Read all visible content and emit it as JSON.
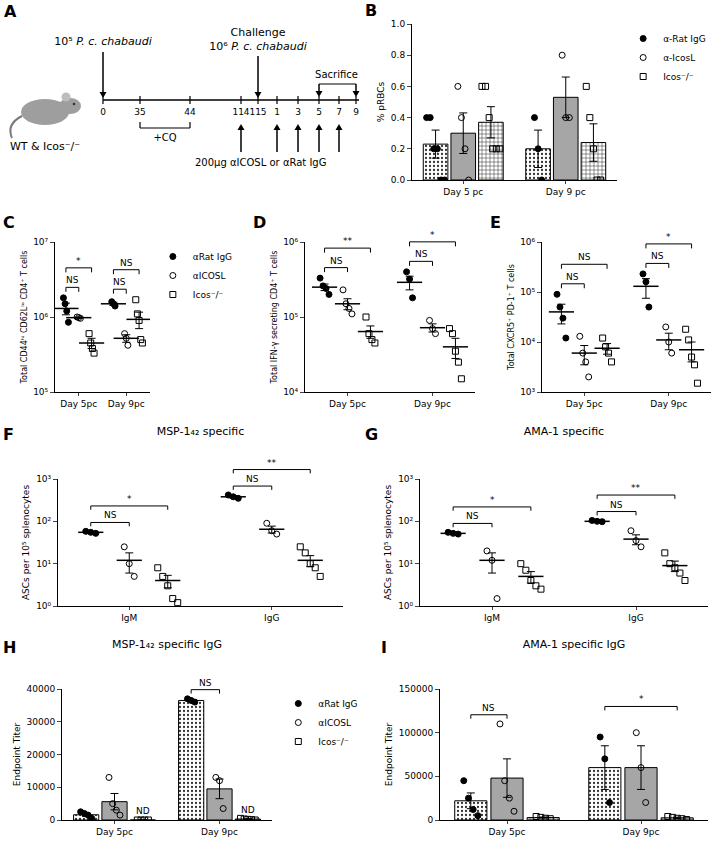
{
  "diagram": {
    "panel": "A",
    "subject": "WT & Icos⁻/⁻",
    "timeline": [
      "0",
      "35",
      "44",
      "114",
      "115",
      "1",
      "3",
      "5",
      "7",
      "9"
    ],
    "infection": {
      "dose": "10⁵",
      "organism": "P. c. chabaudi",
      "at": "0"
    },
    "challenge": {
      "label": "Challenge",
      "dose": "10⁶",
      "organism": "P. c. chabaudi",
      "at": "115"
    },
    "treatment_period": {
      "label": "+CQ",
      "from": "35",
      "to": "44"
    },
    "sacrifice": {
      "label": "Sacrifice",
      "from": "5",
      "to": "9"
    },
    "injections": {
      "label": "200µg αICOSL or αRat IgG",
      "at": [
        "114",
        "1",
        "3",
        "5",
        "7"
      ]
    }
  },
  "chart_data": [
    {
      "panel": "B",
      "type": "bar",
      "categories": [
        "Day 5 pc",
        "Day 9 pc"
      ],
      "y_label": "% pRBCs",
      "ylim": [
        0,
        1
      ],
      "yticks": [
        {
          "value": 0,
          "label": "0.0"
        },
        0.2,
        0.4,
        0.6,
        0.8,
        {
          "value": 1,
          "label": "1.0"
        }
      ],
      "grid": false,
      "legend": "right",
      "series": [
        {
          "name": "α-Rat IgG",
          "color": "#808080",
          "marker": "circle",
          "values": [
            0.23,
            0.2
          ],
          "errors": [
            0.09,
            0.12
          ],
          "points": [
            [
              0.4,
              0.4,
              0.2,
              0.2,
              0,
              0
            ],
            [
              0.4,
              0.2,
              0
            ]
          ]
        },
        {
          "name": "α-IcosL",
          "color": "#a6a6a6",
          "marker": "circle-open",
          "values": [
            0.3,
            0.53
          ],
          "errors": [
            0.13,
            0.13
          ],
          "points": [
            [
              0.6,
              0.4,
              0.2,
              0
            ],
            [
              0.8,
              0.4,
              0.4
            ]
          ]
        },
        {
          "name": "Icos⁻/⁻",
          "color": "#a6a6a6",
          "marker": "square-open",
          "values": [
            0.37,
            0.24
          ],
          "errors": [
            0.1,
            0.12
          ],
          "points": [
            [
              0.6,
              0.6,
              0.4,
              0.2,
              0.2,
              0.2
            ],
            [
              0.6,
              0.4,
              0.2,
              0,
              0
            ]
          ]
        }
      ]
    },
    {
      "panel": "C",
      "type": "scatter",
      "categories": [
        "Day 5pc",
        "Day 9pc"
      ],
      "y_label": "Total CD44ʰⁱ CD62Lˡᵒ CD4⁺ T cells",
      "log": "y",
      "ylim": [
        100000,
        10000000
      ],
      "yticks": [
        {
          "value": 100000,
          "label": "10⁵"
        },
        {
          "value": 1000000,
          "label": "10⁶"
        },
        {
          "value": 10000000,
          "label": "10⁷"
        }
      ],
      "grid": false,
      "legend": "right",
      "series": [
        {
          "name": "αRat IgG",
          "color": "#000000",
          "marker": "circle",
          "values": [
            1300000,
            1500000
          ],
          "errors": [
            230000,
            70000
          ],
          "points": [
            [
              1800000,
              1500000,
              1200000,
              850000
            ],
            [
              1600000,
              1500000,
              1400000
            ]
          ]
        },
        {
          "name": "αICOSL",
          "color": "#000000",
          "marker": "circle-open",
          "values": [
            980000,
            520000
          ],
          "errors": [
            20000,
            60000
          ],
          "points": [
            [
              1000000,
              980000,
              960000
            ],
            [
              600000,
              520000,
              420000
            ]
          ]
        },
        {
          "name": "Icos⁻/⁻",
          "color": "#000000",
          "marker": "square-open",
          "values": [
            450000,
            930000
          ],
          "errors": [
            70000,
            230000
          ],
          "points": [
            [
              600000,
              450000,
              380000,
              330000
            ],
            [
              1700000,
              1100000,
              900000,
              500000,
              450000
            ]
          ]
        }
      ],
      "comparisons": [
        {
          "category": 0,
          "groups": [
            0,
            1
          ],
          "label": "NS"
        },
        {
          "category": 0,
          "groups": [
            0,
            2
          ],
          "label": "*"
        },
        {
          "category": 1,
          "groups": [
            0,
            1
          ],
          "label": "NS"
        },
        {
          "category": 1,
          "groups": [
            0,
            2
          ],
          "label": "NS"
        }
      ]
    },
    {
      "panel": "D",
      "type": "scatter",
      "categories": [
        "Day 5pc",
        "Day 9pc"
      ],
      "y_label": "Total IFN-γ secreting CD4⁺ T cells",
      "log": "y",
      "ylim": [
        10000,
        1000000
      ],
      "yticks": [
        {
          "value": 10000,
          "label": "10⁴"
        },
        {
          "value": 100000,
          "label": "10⁵"
        },
        {
          "value": 1000000,
          "label": "10⁶"
        }
      ],
      "grid": false,
      "series": [
        {
          "color": "#000000",
          "marker": "circle",
          "values": [
            250000,
            290000
          ],
          "errors": [
            25000,
            60000
          ],
          "points": [
            [
              330000,
              260000,
              240000,
              200000
            ],
            [
              400000,
              320000,
              180000
            ]
          ]
        },
        {
          "color": "#000000",
          "marker": "circle-open",
          "values": [
            150000,
            72000
          ],
          "errors": [
            25000,
            9000
          ],
          "points": [
            [
              230000,
              150000,
              130000,
              110000
            ],
            [
              90000,
              70000,
              60000
            ]
          ]
        },
        {
          "color": "#000000",
          "marker": "square-open",
          "values": [
            64000,
            40000
          ],
          "errors": [
            12000,
            12000
          ],
          "points": [
            [
              100000,
              60000,
              50000,
              45000
            ],
            [
              70000,
              60000,
              35000,
              25000,
              15000
            ]
          ]
        }
      ],
      "comparisons": [
        {
          "category": 0,
          "groups": [
            0,
            1
          ],
          "label": "NS"
        },
        {
          "category": 0,
          "groups": [
            0,
            2
          ],
          "label": "**"
        },
        {
          "category": 1,
          "groups": [
            0,
            1
          ],
          "label": "NS"
        },
        {
          "category": 1,
          "groups": [
            0,
            2
          ],
          "label": "*"
        }
      ]
    },
    {
      "panel": "E",
      "type": "scatter",
      "categories": [
        "Day 5pc",
        "Day 9pc"
      ],
      "y_label": "Total CXCR5⁺ PD-1⁺ T cells",
      "log": "y",
      "ylim": [
        1000,
        1000000
      ],
      "yticks": [
        {
          "value": 1000,
          "label": "10³"
        },
        {
          "value": 10000,
          "label": "10⁴"
        },
        {
          "value": 100000,
          "label": "10⁵"
        },
        {
          "value": 1000000,
          "label": "10⁶"
        }
      ],
      "grid": false,
      "series": [
        {
          "color": "#000000",
          "marker": "circle",
          "values": [
            40000,
            130000
          ],
          "errors": [
            17000,
            55000
          ],
          "points": [
            [
              90000,
              50000,
              30000,
              12000
            ],
            [
              230000,
              160000,
              50000
            ]
          ]
        },
        {
          "color": "#000000",
          "marker": "circle-open",
          "values": [
            6000,
            11000
          ],
          "errors": [
            2500,
            4000
          ],
          "points": [
            [
              13000,
              6000,
              4000,
              2000
            ],
            [
              20000,
              10000,
              6000
            ]
          ]
        },
        {
          "color": "#000000",
          "marker": "square-open",
          "values": [
            7500,
            7000
          ],
          "errors": [
            1800,
            3000
          ],
          "points": [
            [
              12000,
              8000,
              6000,
              4000
            ],
            [
              18000,
              11000,
              5000,
              3500,
              1500
            ]
          ]
        }
      ],
      "comparisons": [
        {
          "category": 0,
          "groups": [
            0,
            1
          ],
          "label": "NS"
        },
        {
          "category": 0,
          "groups": [
            0,
            2
          ],
          "label": "NS"
        },
        {
          "category": 1,
          "groups": [
            0,
            1
          ],
          "label": "NS"
        },
        {
          "category": 1,
          "groups": [
            0,
            2
          ],
          "label": "*"
        }
      ]
    },
    {
      "panel": "F",
      "type": "scatter",
      "title": "MSP-1₄₂ specific",
      "categories": [
        "IgM",
        "IgG"
      ],
      "y_label": "ASCs per 10⁵ splenocytes",
      "log": "y",
      "ylim": [
        1,
        1000
      ],
      "yticks": [
        {
          "value": 1,
          "label": "10⁰"
        },
        {
          "value": 10,
          "label": "10¹"
        },
        {
          "value": 100,
          "label": "10²"
        },
        {
          "value": 1000,
          "label": "10³"
        }
      ],
      "grid": false,
      "series": [
        {
          "color": "#000000",
          "marker": "circle",
          "values": [
            55,
            380
          ],
          "errors": [
            3,
            25
          ],
          "points": [
            [
              58,
              55,
              52
            ],
            [
              420,
              380,
              350
            ]
          ]
        },
        {
          "color": "#000000",
          "marker": "circle-open",
          "values": [
            12,
            65
          ],
          "errors": [
            6,
            12
          ],
          "points": [
            [
              25,
              10,
              5
            ],
            [
              90,
              60,
              50
            ]
          ]
        },
        {
          "color": "#000000",
          "marker": "square-open",
          "values": [
            4,
            12
          ],
          "errors": [
            1.3,
            3.5
          ],
          "points": [
            [
              8,
              5,
              3,
              1.5,
              1.2
            ],
            [
              25,
              18,
              10,
              8,
              5
            ]
          ]
        }
      ],
      "comparisons": [
        {
          "category": 0,
          "groups": [
            0,
            1
          ],
          "label": "NS"
        },
        {
          "category": 0,
          "groups": [
            0,
            2
          ],
          "label": "*"
        },
        {
          "category": 1,
          "groups": [
            0,
            1
          ],
          "label": "NS"
        },
        {
          "category": 1,
          "groups": [
            0,
            2
          ],
          "label": "**"
        }
      ]
    },
    {
      "panel": "G",
      "type": "scatter",
      "title": "AMA-1 specific",
      "categories": [
        "IgM",
        "IgG"
      ],
      "y_label": "ASCs per 10⁵ splenocytes",
      "log": "y",
      "ylim": [
        1,
        1000
      ],
      "yticks": [
        {
          "value": 1,
          "label": "10⁰"
        },
        {
          "value": 10,
          "label": "10¹"
        },
        {
          "value": 100,
          "label": "10²"
        },
        {
          "value": 1000,
          "label": "10³"
        }
      ],
      "grid": false,
      "series": [
        {
          "color": "#000000",
          "marker": "circle",
          "values": [
            52,
            100
          ],
          "errors": [
            2,
            3
          ],
          "points": [
            [
              55,
              52,
              50
            ],
            [
              105,
              100,
              98
            ]
          ]
        },
        {
          "color": "#000000",
          "marker": "circle-open",
          "values": [
            12,
            38
          ],
          "errors": [
            6,
            10
          ],
          "points": [
            [
              20,
              12,
              1.5
            ],
            [
              60,
              35,
              25
            ]
          ]
        },
        {
          "color": "#000000",
          "marker": "square-open",
          "values": [
            5,
            9
          ],
          "errors": [
            1.5,
            2.5
          ],
          "points": [
            [
              10,
              7,
              4,
              3,
              2.5
            ],
            [
              18,
              10,
              8,
              6,
              4
            ]
          ]
        }
      ],
      "comparisons": [
        {
          "category": 0,
          "groups": [
            0,
            1
          ],
          "label": "NS"
        },
        {
          "category": 0,
          "groups": [
            0,
            2
          ],
          "label": "*"
        },
        {
          "category": 1,
          "groups": [
            0,
            1
          ],
          "label": "NS"
        },
        {
          "category": 1,
          "groups": [
            0,
            2
          ],
          "label": "**"
        }
      ]
    },
    {
      "panel": "H",
      "type": "bar",
      "title": "MSP-1₄₂ specific IgG",
      "categories": [
        "Day 5pc",
        "Day 9pc"
      ],
      "y_label": "Endpoint Titer",
      "ylim": [
        0,
        40000
      ],
      "yticks": [
        0,
        10000,
        20000,
        30000,
        40000
      ],
      "grid": false,
      "legend": "right",
      "series": [
        {
          "name": "αRat IgG",
          "color": "#d9d9d9",
          "marker": "circle",
          "values": [
            1600,
            36500
          ],
          "errors": [
            500,
            300
          ],
          "points": [
            [
              2500,
              2000,
              1500,
              500
            ],
            [
              37000,
              36500,
              36000
            ]
          ]
        },
        {
          "name": "αICOSL",
          "color": "#a6a6a6",
          "marker": "circle-open",
          "values": [
            5600,
            9500
          ],
          "errors": [
            2500,
            3000
          ],
          "points": [
            [
              13000,
              5000,
              3000,
              1500
            ],
            [
              13000,
              12000,
              3500
            ]
          ]
        },
        {
          "name": "Icos⁻/⁻",
          "color": "#d9d9d9",
          "marker": "square-open",
          "values": [
            0,
            300
          ],
          "errors": [
            0,
            100
          ],
          "points": [
            [
              0,
              0,
              0,
              0
            ],
            [
              500,
              300,
              200,
              100,
              0
            ]
          ]
        }
      ],
      "annotations": [
        {
          "category": 0,
          "series": 2,
          "text": "ND"
        },
        {
          "category": 1,
          "series": 2,
          "text": "ND"
        }
      ],
      "comparisons": [
        {
          "category": 1,
          "groups": [
            0,
            1
          ],
          "label": "NS"
        }
      ]
    },
    {
      "panel": "I",
      "type": "bar",
      "title": "AMA-1 specific IgG",
      "categories": [
        "Day 5pc",
        "Day 9pc"
      ],
      "y_label": "Endpoint Titer",
      "ylim": [
        0,
        150000
      ],
      "yticks": [
        0,
        50000,
        100000,
        150000
      ],
      "grid": false,
      "series": [
        {
          "color": "#d9d9d9",
          "marker": "circle",
          "values": [
            22000,
            60000
          ],
          "errors": [
            9000,
            25000
          ],
          "points": [
            [
              45000,
              25000,
              12000,
              5000
            ],
            [
              95000,
              70000,
              20000
            ]
          ]
        },
        {
          "color": "#a6a6a6",
          "marker": "circle-open",
          "values": [
            48000,
            60000
          ],
          "errors": [
            22000,
            25000
          ],
          "points": [
            [
              110000,
              45000,
              25000,
              10000
            ],
            [
              100000,
              60000,
              20000
            ]
          ]
        },
        {
          "color": "#d9d9d9",
          "marker": "square-open",
          "values": [
            2800,
            2500
          ],
          "errors": [
            600,
            700
          ],
          "points": [
            [
              4000,
              3000,
              2000,
              1500
            ],
            [
              4000,
              3000,
              2000,
              1500,
              500
            ]
          ]
        }
      ],
      "comparisons": [
        {
          "category": 0,
          "groups": [
            0,
            1
          ],
          "label": "NS"
        },
        {
          "category": 1,
          "groups": [
            0,
            2
          ],
          "label": "*"
        }
      ]
    }
  ]
}
